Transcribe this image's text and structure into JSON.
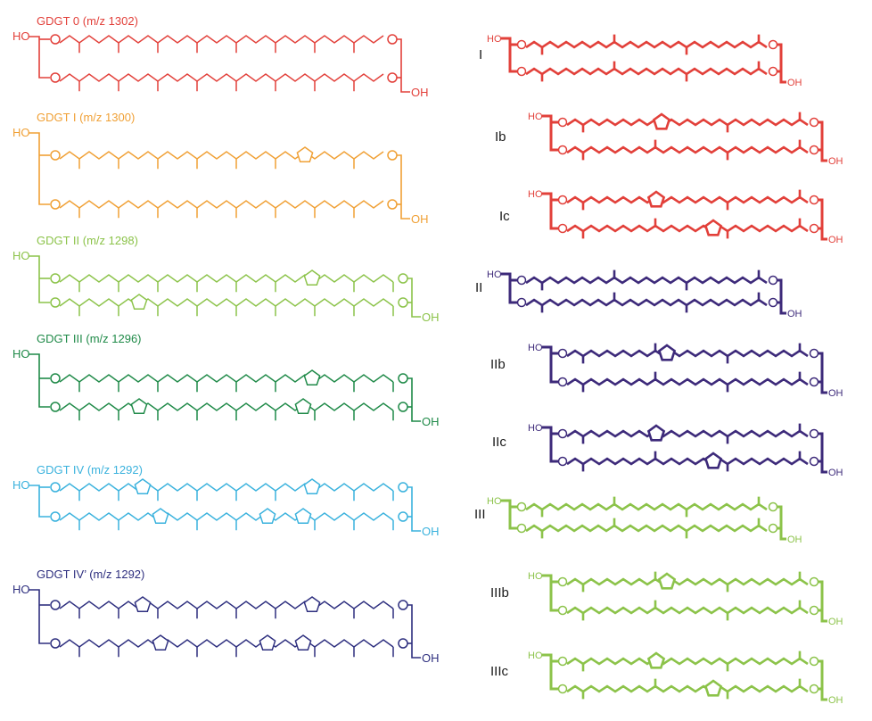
{
  "colors": {
    "red": "#e2403a",
    "orange": "#f0a035",
    "lightgreen": "#8cc34a",
    "darkgreen": "#1f8a48",
    "cyan": "#3ab2dd",
    "navy": "#2e2f7f",
    "purple": "#3d2a7a",
    "label": "#1a1a1a"
  },
  "left": [
    {
      "title": "GDGT 0 (m/z 1302)",
      "color": "red",
      "ho": "HO",
      "o1": "O",
      "o2": "O",
      "o3": "O",
      "o4": "O",
      "oh": "OH"
    },
    {
      "title": "GDGT I (m/z 1300)",
      "color": "orange",
      "ho": "HO",
      "o1": "O",
      "o2": "O",
      "o3": "O",
      "o4": "O",
      "oh": "OH"
    },
    {
      "title": "GDGT II (m/z 1298)",
      "color": "lightgreen",
      "ho": "HO",
      "o1": "O",
      "o2": "O",
      "o3": "O",
      "o4": "O",
      "oh": "OH"
    },
    {
      "title": "GDGT III (m/z 1296)",
      "color": "darkgreen",
      "ho": "HO",
      "o1": "O",
      "o2": "O",
      "o3": "O",
      "o4": "O",
      "oh": "OH"
    },
    {
      "title": "GDGT IV (m/z 1292)",
      "color": "cyan",
      "ho": "HO",
      "o1": "O",
      "o2": "O",
      "o3": "O",
      "o4": "O",
      "oh": "OH"
    },
    {
      "title": "GDGT IV’ (m/z 1292)",
      "color": "navy",
      "ho": "HO",
      "o1": "O",
      "o2": "O",
      "o3": "O",
      "o4": "O",
      "oh": "OH"
    }
  ],
  "right": [
    {
      "label": "I",
      "color": "red",
      "ho": "HO",
      "o1": "O",
      "o2": "O",
      "o3": "O",
      "o4": "O",
      "oh": "OH"
    },
    {
      "label": "Ib",
      "color": "red",
      "ho": "HO",
      "o1": "O",
      "o2": "O",
      "o3": "O",
      "o4": "O",
      "oh": "OH"
    },
    {
      "label": "Ic",
      "color": "red",
      "ho": "HO",
      "o1": "O",
      "o2": "O",
      "o3": "O",
      "o4": "O",
      "oh": "OH"
    },
    {
      "label": "II",
      "color": "purple",
      "ho": "HO",
      "o1": "O",
      "o2": "O",
      "o3": "O",
      "o4": "O",
      "oh": "OH"
    },
    {
      "label": "IIb",
      "color": "purple",
      "ho": "HO",
      "o1": "O",
      "o2": "O",
      "o3": "O",
      "o4": "O",
      "oh": "OH"
    },
    {
      "label": "IIc",
      "color": "purple",
      "ho": "HO",
      "o1": "O",
      "o2": "O",
      "o3": "O",
      "o4": "O",
      "oh": "OH"
    },
    {
      "label": "III",
      "color": "lightgreen",
      "ho": "HO",
      "o1": "O",
      "o2": "O",
      "o3": "O",
      "o4": "O",
      "oh": "OH"
    },
    {
      "label": "IIIb",
      "color": "lightgreen",
      "ho": "HO",
      "o1": "O",
      "o2": "O",
      "o3": "O",
      "o4": "O",
      "oh": "OH"
    },
    {
      "label": "IIIc",
      "color": "lightgreen",
      "ho": "HO",
      "o1": "O",
      "o2": "O",
      "o3": "O",
      "o4": "O",
      "oh": "OH"
    }
  ]
}
